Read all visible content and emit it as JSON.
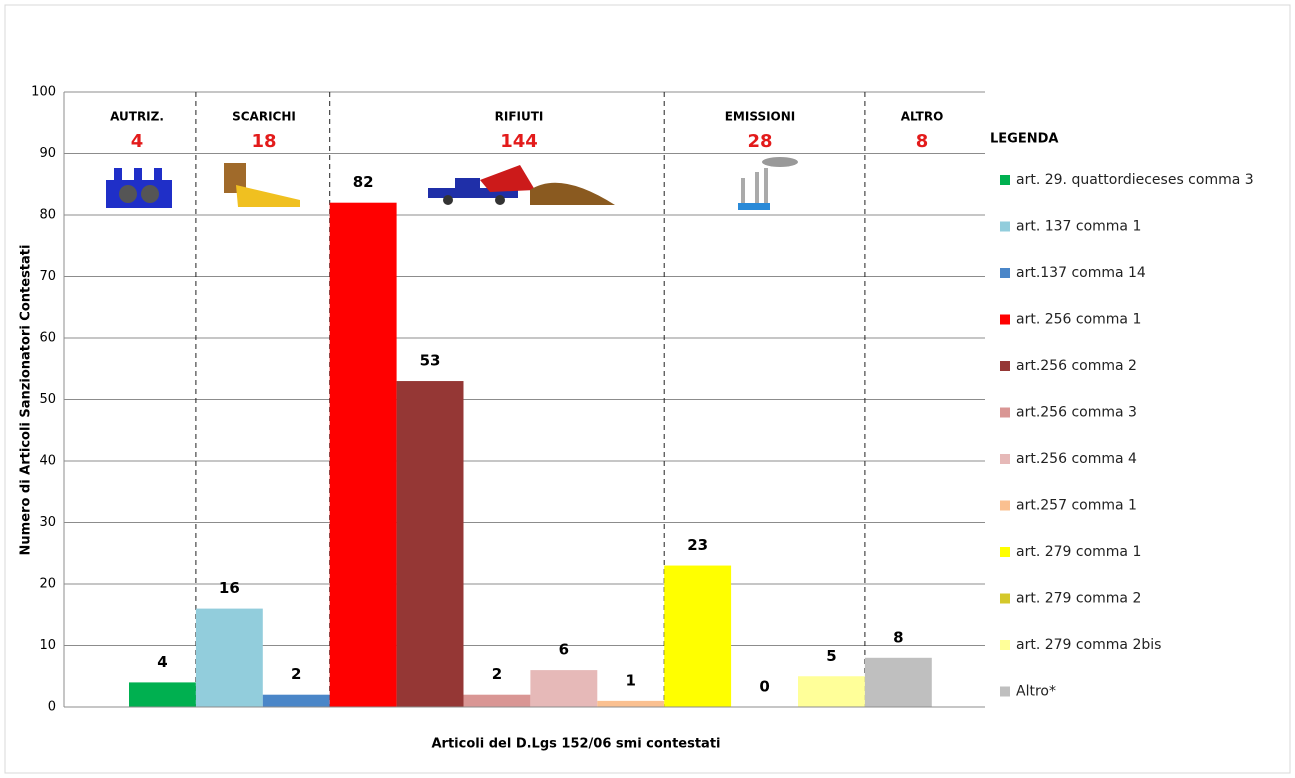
{
  "chart_data": {
    "type": "bar",
    "y_label": "Numero di Articoli  Sanzionatori Contestati",
    "x_label": "Articoli del D.Lgs 152/06 smi contestati",
    "legend_title": "LEGENDA",
    "categories": [
      "art. 29. quattordieceses comma 3",
      "art. 137 comma 1",
      "art.137 comma 14",
      "art. 256 comma 1",
      "art.256 comma 2",
      "art.256 comma 3",
      "art.256 comma 4",
      "art.257 comma 1",
      "art. 279 comma 1",
      "art. 279 comma 2",
      "art. 279 comma 2bis",
      "Altro*"
    ],
    "values": [
      4,
      16,
      2,
      82,
      53,
      2,
      6,
      1,
      23,
      0,
      5,
      8
    ],
    "colors": [
      "#00b050",
      "#92cddc",
      "#4a86c8",
      "#ff0000",
      "#953735",
      "#d99694",
      "#e6b9b8",
      "#fac090",
      "#ffff00",
      "#d4c82a",
      "#ffff99",
      "#bfbfbf"
    ],
    "groups": [
      {
        "label": "AUTRIZ.",
        "total": 4
      },
      {
        "label": "SCARICHI",
        "total": 18
      },
      {
        "label": "RIFIUTI",
        "total": 144
      },
      {
        "label": "EMISSIONI",
        "total": 28
      },
      {
        "label": "ALTRO",
        "total": 8
      }
    ],
    "ylim": [
      0,
      100
    ],
    "yticks": [
      0,
      10,
      20,
      30,
      40,
      50,
      60,
      70,
      80,
      90,
      100
    ],
    "grid": true
  }
}
